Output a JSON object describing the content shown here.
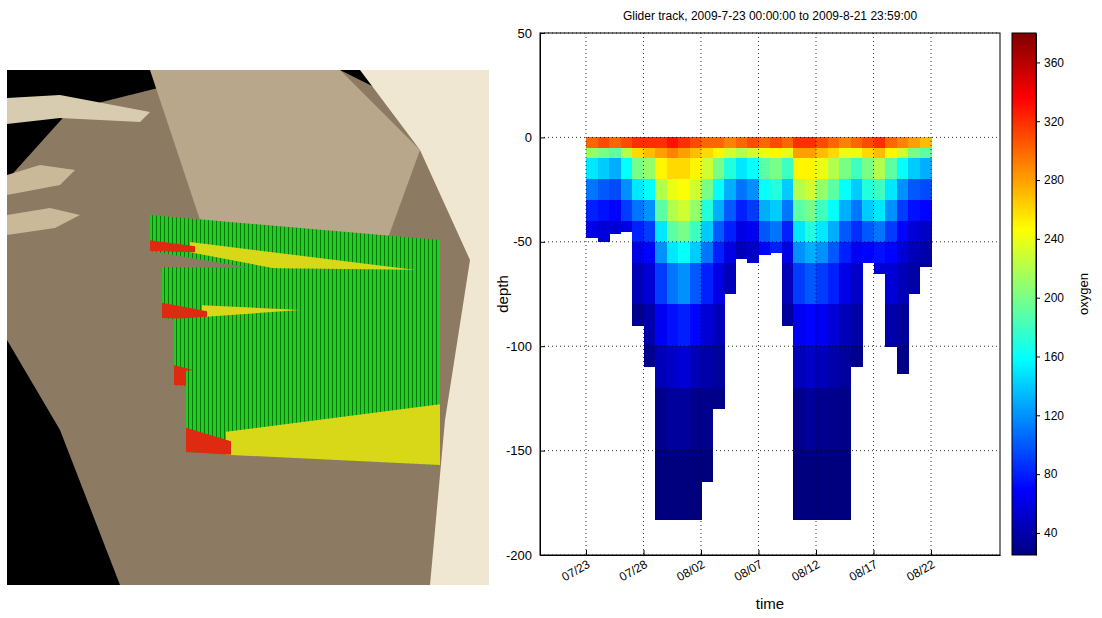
{
  "chart_data": {
    "type": "heatmap",
    "title": "Glider track, 2009-7-23 00:00:00 to 2009-8-21 23:59:00",
    "xlabel": "time",
    "ylabel": "depth",
    "colorbar_label": "oxygen",
    "x": [
      "2009-07-23",
      "2009-07-24",
      "2009-07-25",
      "2009-07-26",
      "2009-07-27",
      "2009-07-28",
      "2009-07-29",
      "2009-07-30",
      "2009-07-31",
      "2009-08-01",
      "2009-08-02",
      "2009-08-03",
      "2009-08-04",
      "2009-08-05",
      "2009-08-06",
      "2009-08-07",
      "2009-08-08",
      "2009-08-09",
      "2009-08-10",
      "2009-08-11",
      "2009-08-12",
      "2009-08-13",
      "2009-08-14",
      "2009-08-15",
      "2009-08-16",
      "2009-08-17",
      "2009-08-18",
      "2009-08-19",
      "2009-08-20",
      "2009-08-21"
    ],
    "depth_bins": [
      0,
      -5,
      -10,
      -20,
      -30,
      -40,
      -50,
      -60,
      -80,
      -100,
      -120,
      -150,
      -185
    ],
    "max_depth": [
      -48,
      -50,
      -46,
      -45,
      -90,
      -110,
      -183,
      -183,
      -183,
      -183,
      -165,
      -130,
      -75,
      -58,
      -60,
      -56,
      -55,
      -90,
      -183,
      -183,
      -183,
      -183,
      -183,
      -110,
      -60,
      -65,
      -100,
      -113,
      -75,
      -62
    ],
    "cells": [
      [
        300,
        210,
        150,
        110,
        80,
        60,
        null,
        null,
        null,
        null,
        null,
        null
      ],
      [
        310,
        200,
        140,
        100,
        75,
        55,
        null,
        null,
        null,
        null,
        null,
        null
      ],
      [
        300,
        190,
        130,
        95,
        70,
        55,
        null,
        null,
        null,
        null,
        null,
        null
      ],
      [
        310,
        220,
        160,
        120,
        90,
        60,
        null,
        null,
        null,
        null,
        null,
        null
      ],
      [
        320,
        260,
        200,
        150,
        110,
        80,
        60,
        45,
        30,
        null,
        null,
        null
      ],
      [
        320,
        270,
        210,
        160,
        120,
        90,
        70,
        55,
        40,
        30,
        null,
        null
      ],
      [
        320,
        280,
        250,
        220,
        190,
        150,
        120,
        90,
        65,
        45,
        30,
        25
      ],
      [
        330,
        290,
        260,
        240,
        220,
        190,
        150,
        110,
        75,
        50,
        35,
        25
      ],
      [
        320,
        280,
        260,
        245,
        230,
        200,
        160,
        120,
        80,
        55,
        35,
        25
      ],
      [
        310,
        270,
        250,
        230,
        210,
        180,
        140,
        100,
        70,
        45,
        30,
        25
      ],
      [
        300,
        260,
        230,
        200,
        170,
        140,
        110,
        80,
        55,
        40,
        30,
        25
      ],
      [
        300,
        250,
        200,
        160,
        130,
        100,
        80,
        60,
        45,
        35,
        28,
        null
      ],
      [
        290,
        230,
        170,
        130,
        100,
        80,
        60,
        45,
        null,
        null,
        null,
        null
      ],
      [
        300,
        220,
        150,
        110,
        80,
        60,
        45,
        null,
        null,
        null,
        null,
        null
      ],
      [
        310,
        230,
        160,
        120,
        90,
        65,
        50,
        null,
        null,
        null,
        null,
        null
      ],
      [
        300,
        240,
        190,
        160,
        130,
        100,
        70,
        null,
        null,
        null,
        null,
        null
      ],
      [
        310,
        250,
        200,
        170,
        140,
        110,
        80,
        null,
        null,
        null,
        null,
        null
      ],
      [
        300,
        240,
        180,
        140,
        110,
        80,
        60,
        45,
        35,
        null,
        null,
        null
      ],
      [
        320,
        280,
        250,
        220,
        190,
        150,
        120,
        90,
        65,
        45,
        30,
        25
      ],
      [
        320,
        280,
        250,
        230,
        200,
        170,
        130,
        100,
        70,
        50,
        35,
        25
      ],
      [
        310,
        270,
        240,
        210,
        180,
        150,
        120,
        90,
        65,
        45,
        30,
        25
      ],
      [
        300,
        260,
        220,
        190,
        160,
        130,
        100,
        80,
        55,
        40,
        30,
        25
      ],
      [
        290,
        240,
        200,
        160,
        130,
        100,
        80,
        60,
        45,
        35,
        28,
        25
      ],
      [
        300,
        240,
        180,
        140,
        110,
        85,
        65,
        50,
        38,
        30,
        null,
        null
      ],
      [
        310,
        260,
        200,
        170,
        140,
        100,
        70,
        null,
        null,
        null,
        null,
        null
      ],
      [
        320,
        270,
        220,
        180,
        150,
        110,
        75,
        55,
        null,
        null,
        null,
        null
      ],
      [
        300,
        250,
        190,
        150,
        120,
        90,
        70,
        55,
        40,
        null,
        null,
        null
      ],
      [
        290,
        230,
        160,
        120,
        90,
        70,
        55,
        45,
        35,
        28,
        null,
        null
      ],
      [
        280,
        200,
        140,
        100,
        75,
        55,
        45,
        38,
        null,
        null,
        null,
        null
      ],
      [
        270,
        190,
        130,
        95,
        70,
        50,
        40,
        35,
        null,
        null,
        null,
        null
      ]
    ],
    "xlim": [
      "2009-07-19",
      "2009-08-28"
    ],
    "xticks": [
      {
        "value": "2009-07-23",
        "label": "07/23"
      },
      {
        "value": "2009-07-28",
        "label": "07/28"
      },
      {
        "value": "2009-08-02",
        "label": "08/02"
      },
      {
        "value": "2009-08-07",
        "label": "08/07"
      },
      {
        "value": "2009-08-12",
        "label": "08/12"
      },
      {
        "value": "2009-08-17",
        "label": "08/17"
      },
      {
        "value": "2009-08-22",
        "label": "08/22"
      }
    ],
    "ylim": [
      -200,
      50
    ],
    "yticks": [
      -200,
      -150,
      -100,
      -50,
      0,
      50
    ],
    "clim": [
      25,
      380
    ],
    "cticks": [
      40,
      80,
      120,
      160,
      200,
      240,
      280,
      320,
      360
    ],
    "grid": true
  }
}
